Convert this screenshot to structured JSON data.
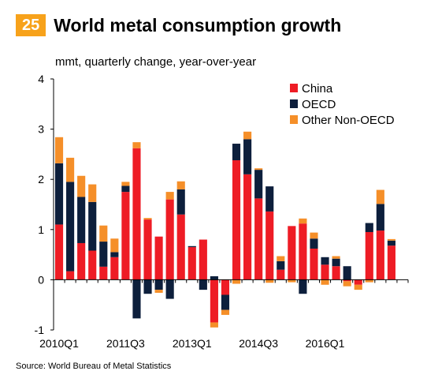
{
  "header": {
    "badge": "25",
    "title": "World metal consumption growth"
  },
  "chart_data": {
    "type": "bar",
    "stacked": true,
    "units_label": "mmt,  quarterly change, year-over-year",
    "ylim": [
      -1,
      4
    ],
    "yticks": [
      -1,
      0,
      1,
      2,
      3,
      4
    ],
    "grid": false,
    "legend_position": "top-right",
    "categories": [
      "2010Q1",
      "2010Q2",
      "2010Q3",
      "2010Q4",
      "2011Q1",
      "2011Q2",
      "2011Q3",
      "2011Q4",
      "2012Q1",
      "2012Q2",
      "2012Q3",
      "2012Q4",
      "2013Q1",
      "2013Q2",
      "2013Q3",
      "2013Q4",
      "2014Q1",
      "2014Q2",
      "2014Q3",
      "2014Q4",
      "2015Q1",
      "2015Q2",
      "2015Q3",
      "2015Q4",
      "2016Q1",
      "2016Q2",
      "2016Q3",
      "2016Q4",
      "2017Q1",
      "2017Q2",
      "2017Q3",
      "2017Q4"
    ],
    "xtick_labels": [
      {
        "index": 0,
        "label": "2010Q1"
      },
      {
        "index": 6,
        "label": "2011Q3"
      },
      {
        "index": 12,
        "label": "2013Q1"
      },
      {
        "index": 18,
        "label": "2014Q3"
      },
      {
        "index": 24,
        "label": "2016Q1"
      }
    ],
    "series": [
      {
        "name": "China",
        "color": "#ee1c25",
        "values": [
          1.1,
          0.17,
          0.73,
          0.58,
          0.26,
          0.45,
          1.75,
          2.62,
          1.2,
          0.86,
          1.6,
          1.3,
          0.65,
          0.8,
          -0.85,
          -0.3,
          2.38,
          2.1,
          1.62,
          1.36,
          0.2,
          1.07,
          1.12,
          0.62,
          0.3,
          0.27,
          -0.03,
          -0.1,
          0.95,
          0.98,
          0.68,
          0.0
        ]
      },
      {
        "name": "OECD",
        "color": "#0d1f3c",
        "values": [
          1.22,
          1.78,
          0.92,
          0.97,
          0.5,
          0.1,
          0.12,
          -0.77,
          -0.28,
          -0.2,
          -0.38,
          0.5,
          0.02,
          -0.2,
          0.07,
          -0.3,
          0.33,
          0.7,
          0.57,
          0.5,
          0.17,
          0.0,
          -0.28,
          0.2,
          0.15,
          0.15,
          0.27,
          0.0,
          0.18,
          0.53,
          0.1,
          0.0
        ]
      },
      {
        "name": "Other Non-OECD",
        "color": "#f58f29",
        "values": [
          0.52,
          0.48,
          0.42,
          0.35,
          0.32,
          0.27,
          0.08,
          0.12,
          0.03,
          -0.06,
          0.15,
          0.16,
          0.0,
          0.0,
          -0.1,
          -0.1,
          -0.08,
          0.15,
          0.03,
          -0.06,
          0.1,
          -0.05,
          0.1,
          0.12,
          -0.1,
          0.05,
          -0.1,
          -0.1,
          -0.05,
          0.28,
          0.03,
          0.0
        ]
      }
    ]
  },
  "footer": {
    "source": "Source: World Bureau of Metal Statistics"
  }
}
